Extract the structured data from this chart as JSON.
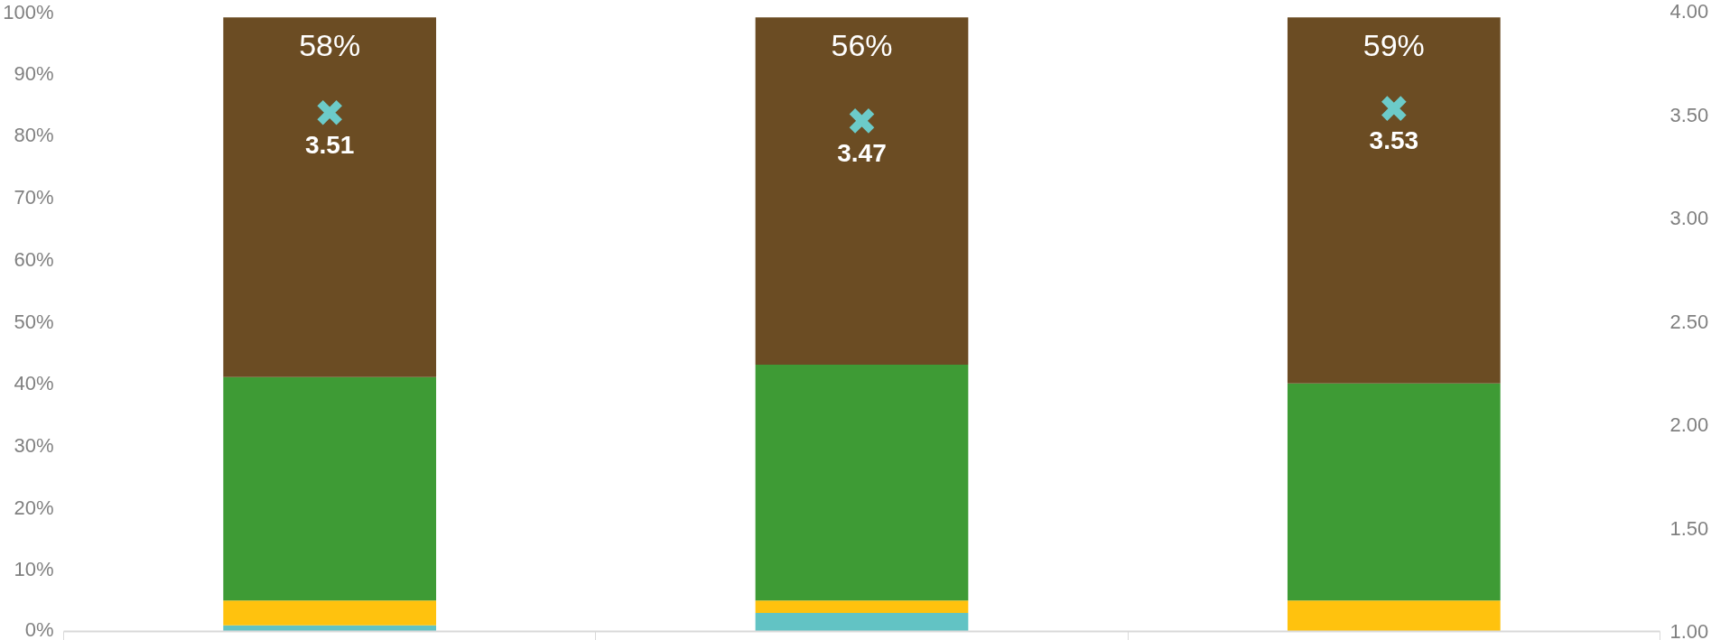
{
  "chart_data": {
    "type": "bar",
    "stacked": true,
    "categories": [
      null,
      null,
      null
    ],
    "series": [
      {
        "color": "#62c3c4",
        "values": [
          1,
          3,
          0
        ]
      },
      {
        "color": "#ffc20e",
        "values": [
          4,
          2,
          5
        ]
      },
      {
        "color": "#3e9b35",
        "values": [
          36,
          38,
          35
        ]
      },
      {
        "color": "#6b4c23",
        "values": [
          58,
          56,
          59
        ],
        "value_labels": [
          "58%",
          "56%",
          "59%"
        ]
      },
      {
        "type": "scatter",
        "axis": "y2",
        "color": "#6ccbc9",
        "values": [
          3.51,
          3.47,
          3.53
        ],
        "value_labels": [
          "3.51",
          "3.47",
          "3.53"
        ]
      }
    ],
    "marker": "cross",
    "grid": false,
    "ylim": [
      0,
      100
    ],
    "yticks": [
      {
        "value": 0,
        "label": "0%"
      },
      {
        "value": 10,
        "label": "10%"
      },
      {
        "value": 20,
        "label": "20%"
      },
      {
        "value": 30,
        "label": "30%"
      },
      {
        "value": 40,
        "label": "40%"
      },
      {
        "value": 50,
        "label": "50%"
      },
      {
        "value": 60,
        "label": "60%"
      },
      {
        "value": 70,
        "label": "70%"
      },
      {
        "value": 80,
        "label": "80%"
      },
      {
        "value": 90,
        "label": "90%"
      },
      {
        "value": 100,
        "label": "100%"
      }
    ],
    "y2lim": [
      1,
      4
    ],
    "y2ticks": [
      {
        "value": 1,
        "label": "1.00"
      },
      {
        "value": 1.5,
        "label": "1.50"
      },
      {
        "value": 2,
        "label": "2.00"
      },
      {
        "value": 2.5,
        "label": "2.50"
      },
      {
        "value": 3,
        "label": "3.00"
      },
      {
        "value": 3.5,
        "label": "3.50"
      },
      {
        "value": 4,
        "label": "4.00"
      }
    ]
  }
}
